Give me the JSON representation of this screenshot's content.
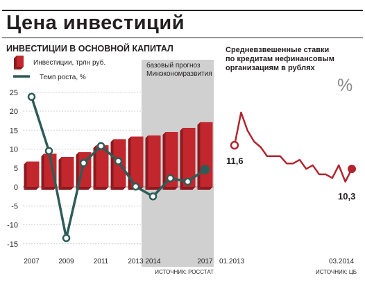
{
  "title": "Цена инвестиций",
  "colors": {
    "bar": "#c1272d",
    "bar_dark": "#8b1a1f",
    "growth_line": "#2e5c57",
    "rate_line": "#b1252e",
    "forecast_band": "#d0d0d0",
    "grid": "#cfcfcf"
  },
  "chart_data": [
    {
      "type": "bar",
      "title": "ИНВЕСТИЦИИ В ОСНОВНОЙ КАПИТАЛ",
      "legend_position": "top-left",
      "categories": [
        "2007",
        "2008",
        "2009",
        "2010",
        "2011",
        "2012",
        "2013",
        "2014",
        "2015",
        "2016",
        "2017"
      ],
      "x_tick_labels": [
        "2007",
        "2009",
        "2011",
        "2013",
        "2014",
        "2017"
      ],
      "y_ticks": [
        -15,
        -10,
        -5,
        0,
        5,
        10,
        15,
        20,
        25
      ],
      "ylim": [
        -17,
        28
      ],
      "grid": true,
      "series": [
        {
          "name": "Инвестиции, трлн руб.",
          "type": "bar",
          "values": [
            6.7,
            8.8,
            7.9,
            9.2,
            11.0,
            12.6,
            13.3,
            13.6,
            14.5,
            15.6,
            17.1
          ]
        },
        {
          "name": "Темп роста, %",
          "type": "line",
          "values": [
            23.8,
            9.5,
            -13.5,
            6.3,
            10.8,
            6.8,
            0.1,
            -2.5,
            2.3,
            1.4,
            4.6
          ]
        }
      ],
      "forecast_label": [
        "базовый прогноз",
        "Минэкономразвития"
      ],
      "source": "ИСТОЧНИК: РОССТАТ"
    },
    {
      "type": "line",
      "title_lines": [
        "Средневзвешенные ставки",
        "по кредитам нефинансовым",
        "организациям в рублях"
      ],
      "unit_label": "%",
      "x_tick_labels": [
        "01.2013",
        "03.2014"
      ],
      "series": [
        {
          "values": [
            11.6,
            13.4,
            12.4,
            11.8,
            11.5,
            11.0,
            11.0,
            11.0,
            10.6,
            10.6,
            10.8,
            10.3,
            10.5,
            10.0,
            10.0,
            9.8,
            10.5,
            9.6,
            10.3
          ]
        }
      ],
      "start_label": "11,6",
      "end_label": "10,3",
      "source": "ИСТОЧНИК: ЦБ"
    }
  ]
}
